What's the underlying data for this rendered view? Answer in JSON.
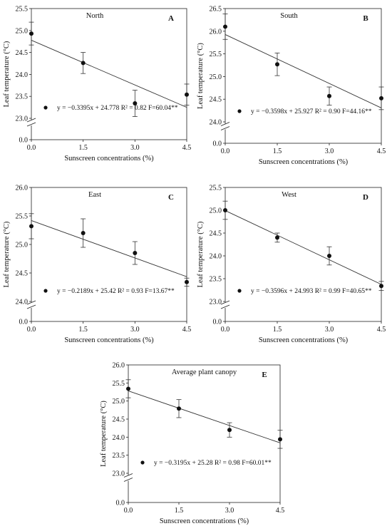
{
  "figure": {
    "type": "multi-panel scatter with regression lines and error bars"
  },
  "chart_data": [
    {
      "id": "A",
      "type": "scatter",
      "title": "North",
      "panel_letter": "A",
      "xlabel": "Sunscreen concentrations (%)",
      "ylabel": "Leaf temperature (°C)",
      "x": [
        0.0,
        1.5,
        3.0,
        4.5
      ],
      "x_ticks": [
        "0.0",
        "1.5",
        "3.0",
        "4.5"
      ],
      "xlim": [
        0.0,
        4.5
      ],
      "y": [
        24.93,
        24.26,
        23.34,
        23.54
      ],
      "y_err": [
        0.26,
        0.24,
        0.3,
        0.24
      ],
      "ylim": [
        23.0,
        25.5
      ],
      "y_ticks": [
        "23.0",
        "23.5",
        "24.0",
        "24.5",
        "25.0",
        "25.5"
      ],
      "y_break_ticks": [
        "0.0"
      ],
      "regression": {
        "slope": -0.3395,
        "intercept": 24.778
      },
      "legend": "y = −0.3395x + 24.778  R² = 0.82 F=60.04**"
    },
    {
      "id": "B",
      "type": "scatter",
      "title": "South",
      "panel_letter": "B",
      "xlabel": "Sunscreen concentrations (%)",
      "ylabel": "Leaf temperature (°C)",
      "x": [
        0.0,
        1.5,
        3.0,
        4.5
      ],
      "x_ticks": [
        "0.0",
        "1.5",
        "3.0",
        "4.5"
      ],
      "xlim": [
        0.0,
        4.5
      ],
      "y": [
        26.1,
        25.27,
        24.57,
        24.52
      ],
      "y_err": [
        0.28,
        0.25,
        0.2,
        0.25
      ],
      "ylim": [
        24.0,
        26.5
      ],
      "y_ticks": [
        "24.0",
        "24.5",
        "25.0",
        "25.5",
        "26.0",
        "26.5"
      ],
      "y_break_ticks": [
        "0.0"
      ],
      "regression": {
        "slope": -0.3598,
        "intercept": 25.927
      },
      "legend": "y = −0.3598x + 25.927  R² = 0.90 F=44.16**"
    },
    {
      "id": "C",
      "type": "scatter",
      "title": "East",
      "panel_letter": "C",
      "xlabel": "Sunscreen concentrations (%)",
      "ylabel": "Leaf temperature (°C)",
      "x": [
        0.0,
        1.5,
        3.0,
        4.5
      ],
      "x_ticks": [
        "0.0",
        "1.5",
        "3.0",
        "4.5"
      ],
      "xlim": [
        0.0,
        4.5
      ],
      "y": [
        25.32,
        25.2,
        24.85,
        24.34
      ],
      "y_err": [
        0.22,
        0.25,
        0.2,
        0.07
      ],
      "ylim": [
        24.0,
        26.0
      ],
      "y_ticks": [
        "24.0",
        "24.5",
        "25.0",
        "25.5",
        "26.0"
      ],
      "y_break_ticks": [
        "0.0"
      ],
      "regression": {
        "slope": -0.2189,
        "intercept": 25.42
      },
      "legend": "y = −0.2189x + 25.42  R² = 0.93 F=13.67**"
    },
    {
      "id": "D",
      "type": "scatter",
      "title": "West",
      "panel_letter": "D",
      "xlabel": "Sunscreen concentrations (%)",
      "ylabel": "Leaf temperature (°C)",
      "x": [
        0.0,
        1.5,
        3.0,
        4.5
      ],
      "x_ticks": [
        "0.0",
        "1.5",
        "3.0",
        "4.5"
      ],
      "xlim": [
        0.0,
        4.5
      ],
      "y": [
        25.0,
        24.4,
        24.0,
        23.34
      ],
      "y_err": [
        0.2,
        0.1,
        0.2,
        0.1
      ],
      "ylim": [
        23.0,
        25.5
      ],
      "y_ticks": [
        "23.0",
        "23.5",
        "24.0",
        "24.5",
        "25.0",
        "25.5"
      ],
      "y_break_ticks": [
        "0.0"
      ],
      "regression": {
        "slope": -0.3596,
        "intercept": 24.993
      },
      "legend": "y = −0.3596x + 24.993  R² = 0.99 F=40.65**"
    },
    {
      "id": "E",
      "type": "scatter",
      "title": "Average plant canopy",
      "panel_letter": "E",
      "xlabel": "Sunscreen concentrations (%)",
      "ylabel": "Leaf temperature (°C)",
      "x": [
        0.0,
        1.5,
        3.0,
        4.5
      ],
      "x_ticks": [
        "0.0",
        "1.5",
        "3.0",
        "4.5"
      ],
      "xlim": [
        0.0,
        4.5
      ],
      "y": [
        25.34,
        24.79,
        24.2,
        23.94
      ],
      "y_err": [
        0.25,
        0.25,
        0.2,
        0.25
      ],
      "ylim": [
        23.0,
        26.0
      ],
      "y_ticks": [
        "23.0",
        "23.5",
        "24.0",
        "24.5",
        "25.0",
        "25.5",
        "26.0"
      ],
      "y_break_ticks": [
        "0.0"
      ],
      "regression": {
        "slope": -0.3195,
        "intercept": 25.28
      },
      "legend": "y = −0.3195x + 25.28 R² = 0.98 F=60.01**"
    }
  ]
}
